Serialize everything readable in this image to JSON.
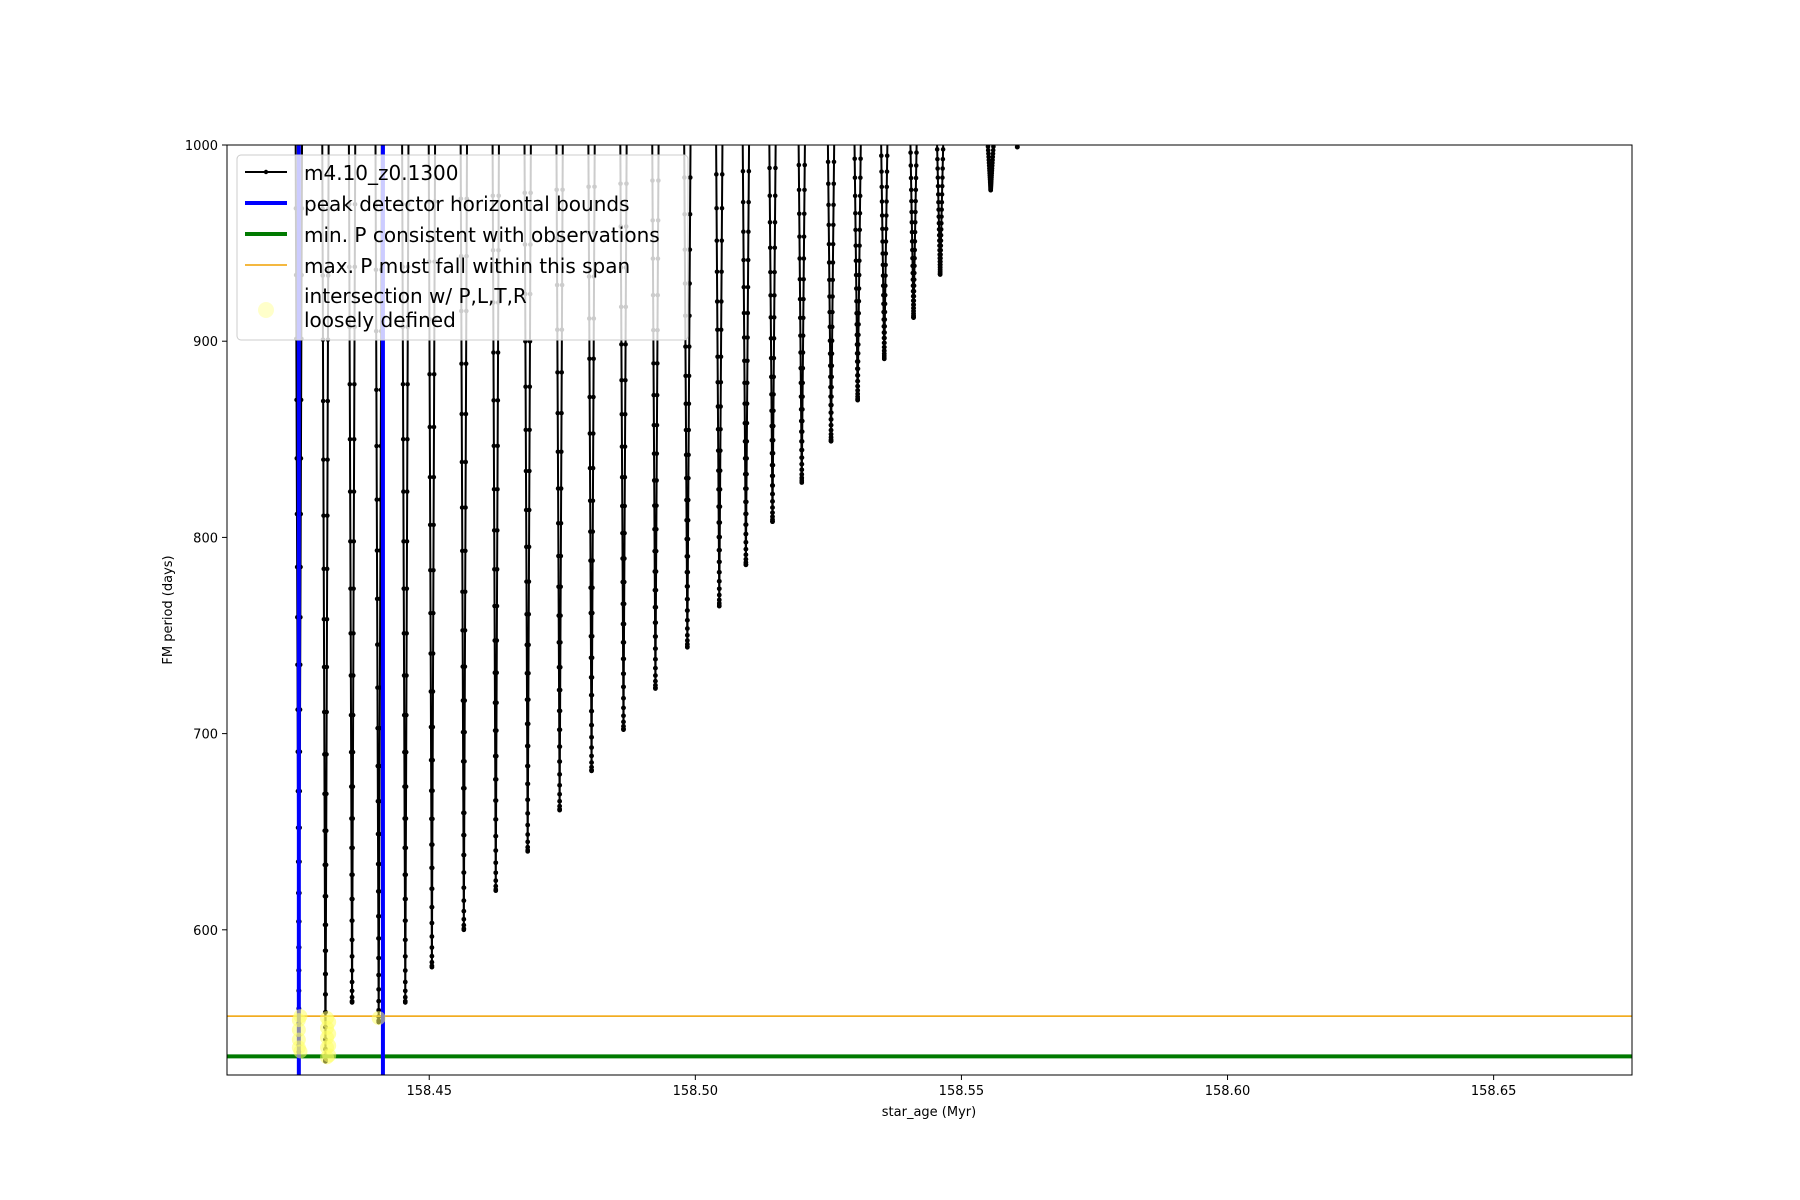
{
  "chart_data": {
    "type": "line",
    "title": "",
    "xlabel": "star_age (Myr)",
    "ylabel": "FM period (days)",
    "xlim": [
      158.412,
      158.676
    ],
    "ylim": [
      526,
      1000
    ],
    "x_ticks": [
      158.45,
      158.5,
      158.55,
      158.6,
      158.65
    ],
    "x_tick_labels": [
      "158.45",
      "158.50",
      "158.55",
      "158.60",
      "158.65"
    ],
    "y_ticks": [
      600,
      700,
      800,
      900,
      1000
    ],
    "y_tick_labels": [
      "600",
      "700",
      "800",
      "900",
      "1000"
    ],
    "grid": false,
    "legend_position": "upper-left",
    "series": [
      {
        "name": "m4.10_z0.1300",
        "kind": "line-with-markers",
        "color": "#000000",
        "note_spikes_x": [
          158.4255,
          158.4305,
          158.4355,
          158.4405,
          158.4455,
          158.4505,
          158.4565,
          158.4625,
          158.4685,
          158.4745,
          158.4805,
          158.4865,
          158.4925,
          158.4985,
          158.5045,
          158.5095,
          158.5145,
          158.52,
          158.5255,
          158.5305,
          158.5355,
          158.541,
          158.546,
          158.5555
        ],
        "spike_minima": [
          535,
          533,
          563,
          553,
          563,
          581,
          600,
          620,
          640,
          661,
          681,
          702,
          723,
          744,
          765,
          786,
          808,
          828,
          849,
          870,
          891,
          912,
          934,
          977
        ],
        "end_point": [
          158.5605,
          999
        ]
      },
      {
        "name": "peak detector horizontal bounds",
        "kind": "vline",
        "color": "#0000ff",
        "x": [
          158.4255,
          158.4413
        ]
      },
      {
        "name": "min. P consistent with observations",
        "kind": "hline",
        "color": "#007a00",
        "y": 535.5
      },
      {
        "name": "max. P must fall within this span",
        "kind": "hline",
        "color": "#f0a000",
        "y": 556
      },
      {
        "name": "intersection w/ P,L,T,R\nloosely defined",
        "kind": "markers",
        "color": "#ffff66",
        "points": [
          [
            158.4255,
            554
          ],
          [
            158.4255,
            549
          ],
          [
            158.4255,
            544
          ],
          [
            158.4255,
            540
          ],
          [
            158.4258,
            556
          ],
          [
            158.4258,
            538
          ],
          [
            158.4308,
            555
          ],
          [
            158.4308,
            550
          ],
          [
            158.4308,
            545
          ],
          [
            158.4308,
            540
          ],
          [
            158.4308,
            535
          ],
          [
            158.4312,
            553
          ],
          [
            158.4312,
            547
          ],
          [
            158.4312,
            541
          ],
          [
            158.4312,
            536
          ],
          [
            158.4405,
            555
          ]
        ]
      }
    ],
    "legend": {
      "entries": [
        "m4.10_z0.1300",
        "peak detector horizontal bounds",
        "min. P consistent with observations",
        "max. P must fall within this span",
        "intersection w/ P,L,T,R",
        "loosely defined"
      ]
    }
  }
}
